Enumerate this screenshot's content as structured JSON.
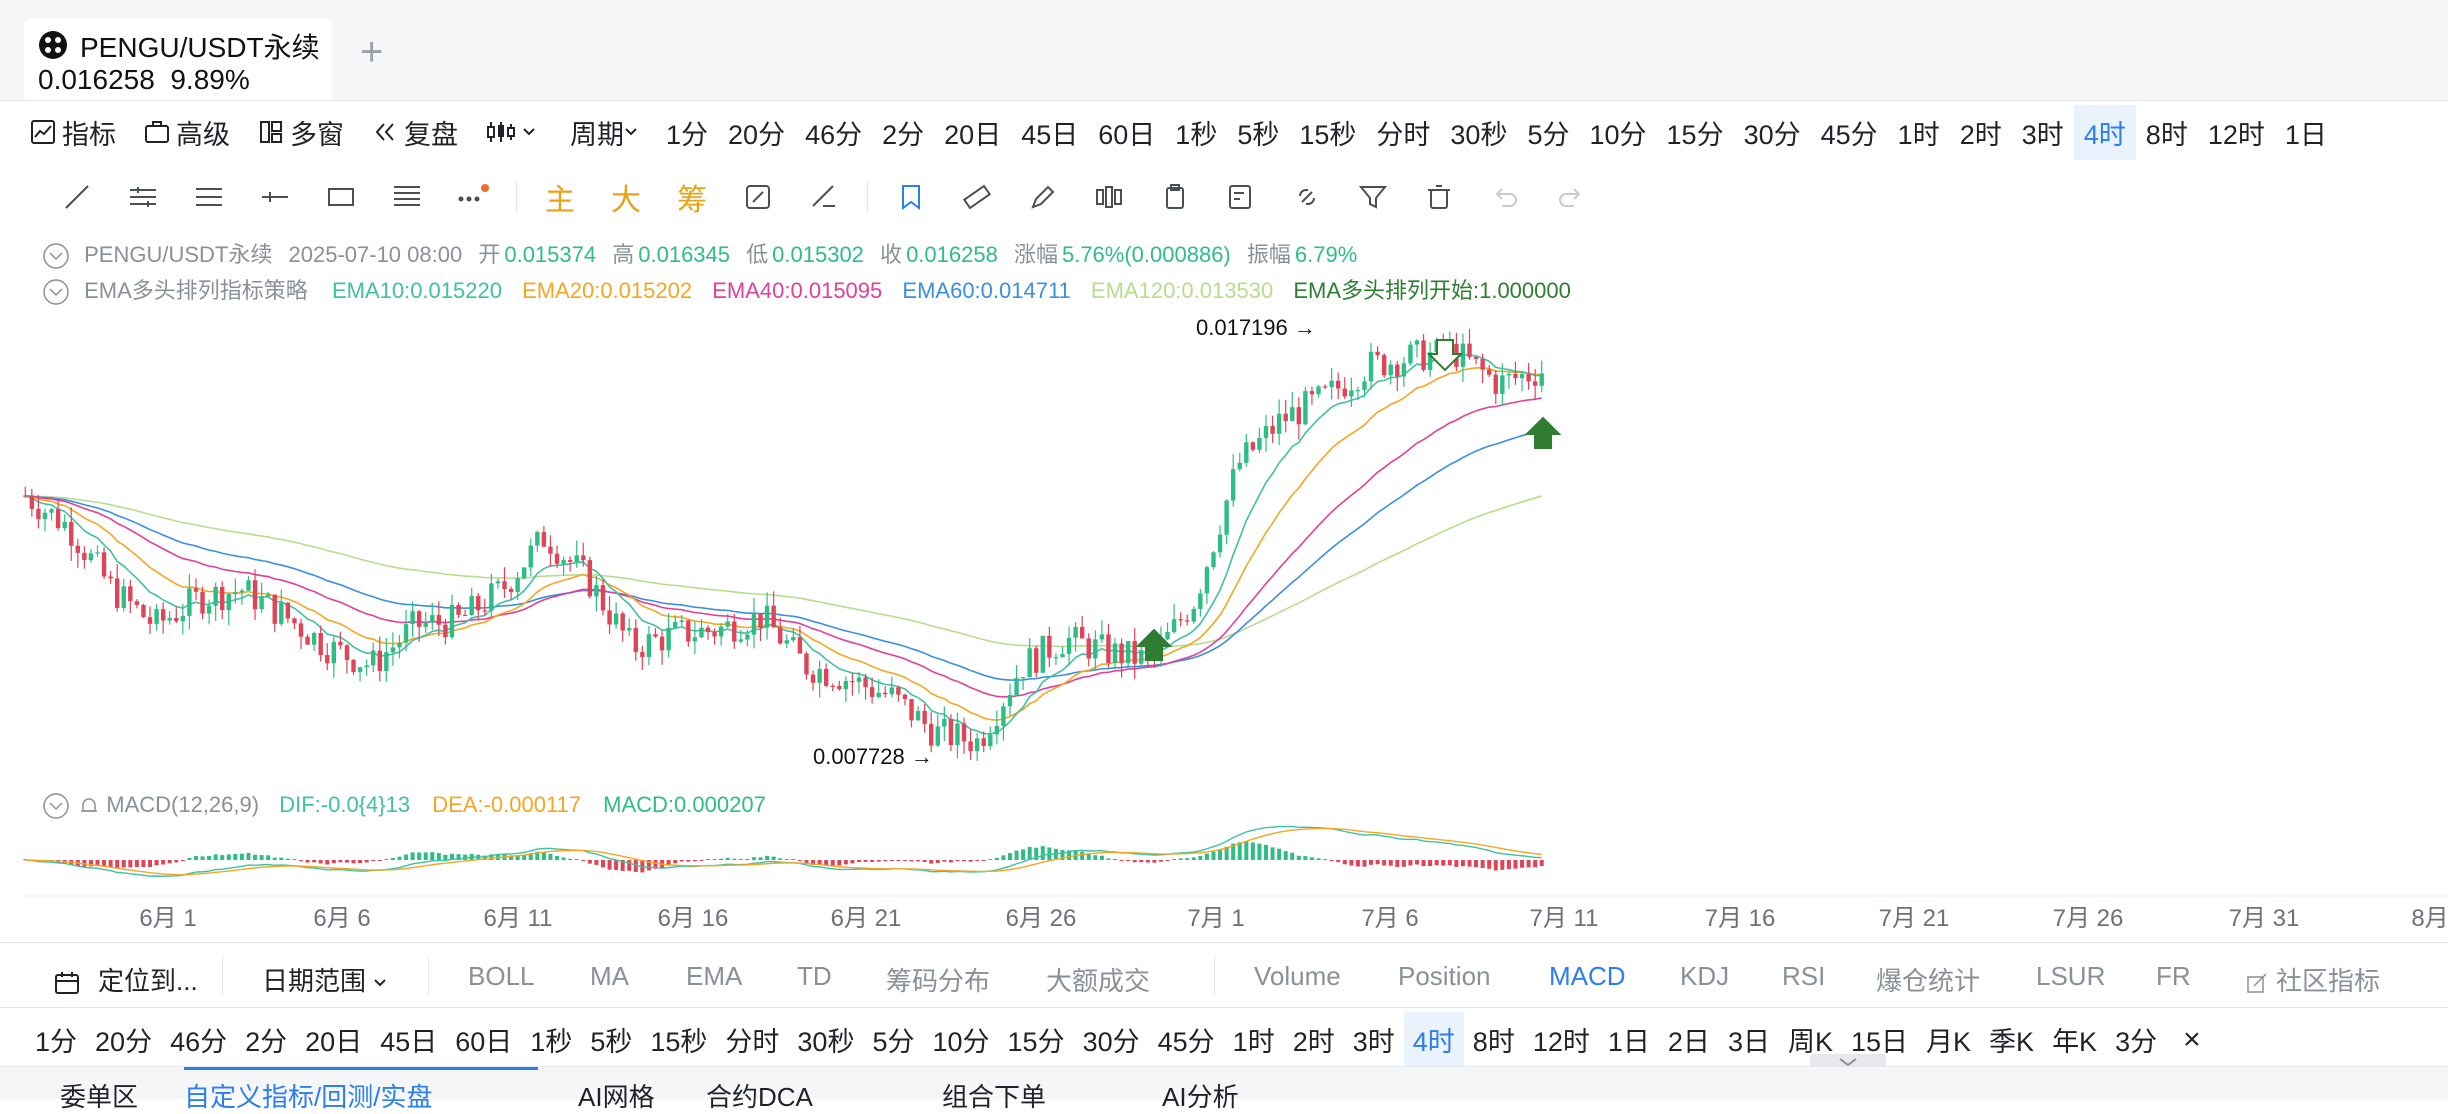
{
  "tab": {
    "title": "PENGU/USDT永续",
    "price": "0.016258",
    "change": "9.89%",
    "add": "+"
  },
  "toolbar": {
    "tools": [
      "指标",
      "高级",
      "多窗",
      "复盘"
    ],
    "period_label": "周期",
    "intervals": [
      "1分",
      "20分",
      "46分",
      "2分",
      "20日",
      "45日",
      "60日",
      "1秒",
      "5秒",
      "15秒",
      "分时",
      "30秒",
      "5分",
      "10分",
      "15分",
      "30分",
      "45分",
      "1时",
      "2时",
      "3时",
      "4时",
      "8时",
      "12时",
      "1日"
    ],
    "active_interval": "4时"
  },
  "drawing_tools": {
    "icons": [
      "trend-line-icon",
      "parallel-channel-icon",
      "horizontal-lines-icon",
      "horizontal-ray-icon",
      "rectangle-icon",
      "fib-icon",
      "more-icon"
    ],
    "chip_labels": [
      "主",
      "大",
      "筹"
    ]
  },
  "legend": {
    "symbol": "PENGU/USDT永续",
    "datetime": "2025-07-10 08:00",
    "open_label": "开",
    "open": "0.015374",
    "high_label": "高",
    "high": "0.016345",
    "low_label": "低",
    "low": "0.015302",
    "close_label": "收",
    "close": "0.016258",
    "change_label": "涨幅",
    "change": "5.76%(0.000886)",
    "amp_label": "振幅",
    "amp": "6.79%",
    "strategy": "EMA多头排列指标策略",
    "ema10": "EMA10:0.015220",
    "ema20": "EMA20:0.015202",
    "ema40": "EMA40:0.015095",
    "ema60": "EMA60:0.014711",
    "ema120": "EMA120:0.013530",
    "signal": "EMA多头排列开始:1.000000"
  },
  "annotations": {
    "high_mark": "0.017196 →",
    "low_mark": "0.007728 →"
  },
  "macd": {
    "label": "MACD(12,26,9)",
    "dif": "DIF:-0.0{4}13",
    "dea": "DEA:-0.000117",
    "macd": "MACD:0.000207"
  },
  "x_axis": [
    "6月 1",
    "6月 6",
    "6月 11",
    "6月 16",
    "6月 21",
    "6月 26",
    "7月 1",
    "7月 6",
    "7月 11",
    "7月 16",
    "7月 21",
    "7月 26",
    "7月 31",
    "8月"
  ],
  "colors": {
    "up": "#2ebd85",
    "down": "#e04456",
    "ema10": "#3fc1a4",
    "ema20": "#f5a623",
    "ema40": "#e0409a",
    "ema60": "#3b8fe0",
    "ema120": "#b8dd8f",
    "signal": "#2e7d32",
    "accent": "#2c7ef0"
  },
  "chart_data": {
    "type": "candlestick",
    "x_range": [
      "6月 1",
      "8月"
    ],
    "y_range": [
      0.0077,
      0.0172
    ],
    "price_path": [
      0.0135,
      0.0128,
      0.0114,
      0.0106,
      0.0112,
      0.0114,
      0.0108,
      0.0101,
      0.0097,
      0.0106,
      0.0107,
      0.0114,
      0.0126,
      0.0116,
      0.0101,
      0.0104,
      0.0105,
      0.0108,
      0.0097,
      0.0094,
      0.009,
      0.0082,
      0.008,
      0.0097,
      0.0103,
      0.01,
      0.0098,
      0.0112,
      0.0142,
      0.0152,
      0.0157,
      0.0164,
      0.0166,
      0.0167,
      0.016,
      0.0163
    ],
    "high": "0.017196",
    "low": "0.007728"
  },
  "indicator_bar": {
    "locate": "定位到...",
    "date_range": "日期范围",
    "main": [
      "BOLL",
      "MA",
      "EMA",
      "TD",
      "筹码分布",
      "大额成交"
    ],
    "sub": [
      "Volume",
      "Position",
      "MACD",
      "KDJ",
      "RSI",
      "爆仓统计",
      "LSUR",
      "FR"
    ],
    "active_sub": "MACD",
    "community": "社区指标"
  },
  "intervals2": [
    "1分",
    "20分",
    "46分",
    "2分",
    "20日",
    "45日",
    "60日",
    "1秒",
    "5秒",
    "15秒",
    "分时",
    "30秒",
    "5分",
    "10分",
    "15分",
    "30分",
    "45分",
    "1时",
    "2时",
    "3时",
    "4时",
    "8时",
    "12时",
    "1日",
    "2日",
    "3日",
    "周K",
    "15日",
    "月K",
    "季K",
    "年K",
    "3分"
  ],
  "active_interval2": "4时",
  "close_icon": "×",
  "bottom_tabs": [
    "委单区",
    "自定义指标/回测/实盘",
    "AI网格",
    "合约DCA",
    "组合下单",
    "AI分析"
  ]
}
